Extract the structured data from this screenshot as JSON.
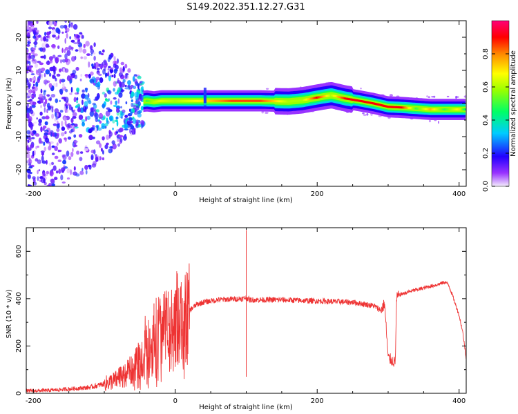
{
  "title": "S149.2022.351.12.27.G31",
  "chart_data": [
    {
      "type": "heatmap",
      "title": "S149.2022.351.12.27.G31",
      "xlabel": "Height of straight line (km)",
      "ylabel": "Frequency (Hz)",
      "xlim": [
        -210,
        410
      ],
      "ylim": [
        -25,
        25
      ],
      "xticks": [
        -200,
        0,
        200,
        400
      ],
      "yticks": [
        -20,
        -10,
        0,
        10,
        20
      ],
      "colorbar": {
        "label": "Normalized spectral amplitude",
        "ticks": [
          0.0,
          0.2,
          0.4,
          0.6,
          0.8
        ],
        "range": [
          0,
          1
        ],
        "colormap": [
          "#e8d8f8",
          "#7700ff",
          "#0000ff",
          "#00ccff",
          "#00ff80",
          "#88ff00",
          "#ffff00",
          "#ff8800",
          "#ff0000",
          "#ff0080"
        ]
      },
      "ridge": {
        "x": [
          -50,
          -40,
          -30,
          -20,
          0,
          40,
          80,
          120,
          160,
          180,
          200,
          220,
          240,
          260,
          280,
          300,
          320,
          340,
          360,
          380,
          400,
          410
        ],
        "frequency": [
          0.5,
          0.8,
          0.5,
          0.8,
          0.8,
          0.8,
          0.8,
          0.8,
          0.6,
          1.0,
          1.8,
          2.5,
          1.5,
          0.8,
          0.0,
          -1.0,
          -1.2,
          -1.5,
          -1.8,
          -1.8,
          -1.8,
          -1.8
        ],
        "amplitude": [
          0.45,
          0.5,
          0.6,
          0.65,
          0.6,
          0.7,
          0.85,
          0.85,
          0.6,
          0.6,
          0.9,
          0.6,
          0.9,
          0.9,
          0.9,
          0.9,
          0.9,
          0.5,
          0.75,
          0.5,
          0.7,
          0.4
        ]
      }
    },
    {
      "type": "line",
      "xlabel": "Height of straight line (km)",
      "ylabel": "SNR (10 * v/v)",
      "xlim": [
        -210,
        410
      ],
      "ylim": [
        0,
        700
      ],
      "xticks": [
        -200,
        0,
        200,
        400
      ],
      "yticks": [
        0,
        200,
        400,
        600
      ],
      "color": "#ee3333",
      "x": [
        -210,
        -180,
        -150,
        -120,
        -100,
        -80,
        -60,
        -50,
        -40,
        -30,
        -20,
        -10,
        0,
        10,
        15,
        20,
        30,
        40,
        60,
        80,
        95,
        100,
        105,
        120,
        150,
        200,
        250,
        280,
        290,
        295,
        300,
        305,
        310,
        312,
        315,
        320,
        330,
        350,
        370,
        380,
        385,
        390,
        400,
        405,
        410
      ],
      "y": [
        10,
        12,
        18,
        25,
        40,
        60,
        100,
        140,
        190,
        220,
        260,
        285,
        280,
        300,
        330,
        350,
        375,
        385,
        395,
        398,
        400,
        405,
        395,
        395,
        395,
        390,
        385,
        370,
        350,
        380,
        150,
        140,
        130,
        400,
        415,
        420,
        430,
        445,
        460,
        470,
        460,
        420,
        330,
        260,
        150
      ],
      "spikes": [
        {
          "x": 100,
          "y": 690
        },
        {
          "x": 100,
          "y": 70
        },
        {
          "x": -50,
          "y": 205
        },
        {
          "x": -30,
          "y": 380
        },
        {
          "x": -10,
          "y": 430
        },
        {
          "x": 17,
          "y": 120
        }
      ]
    }
  ]
}
